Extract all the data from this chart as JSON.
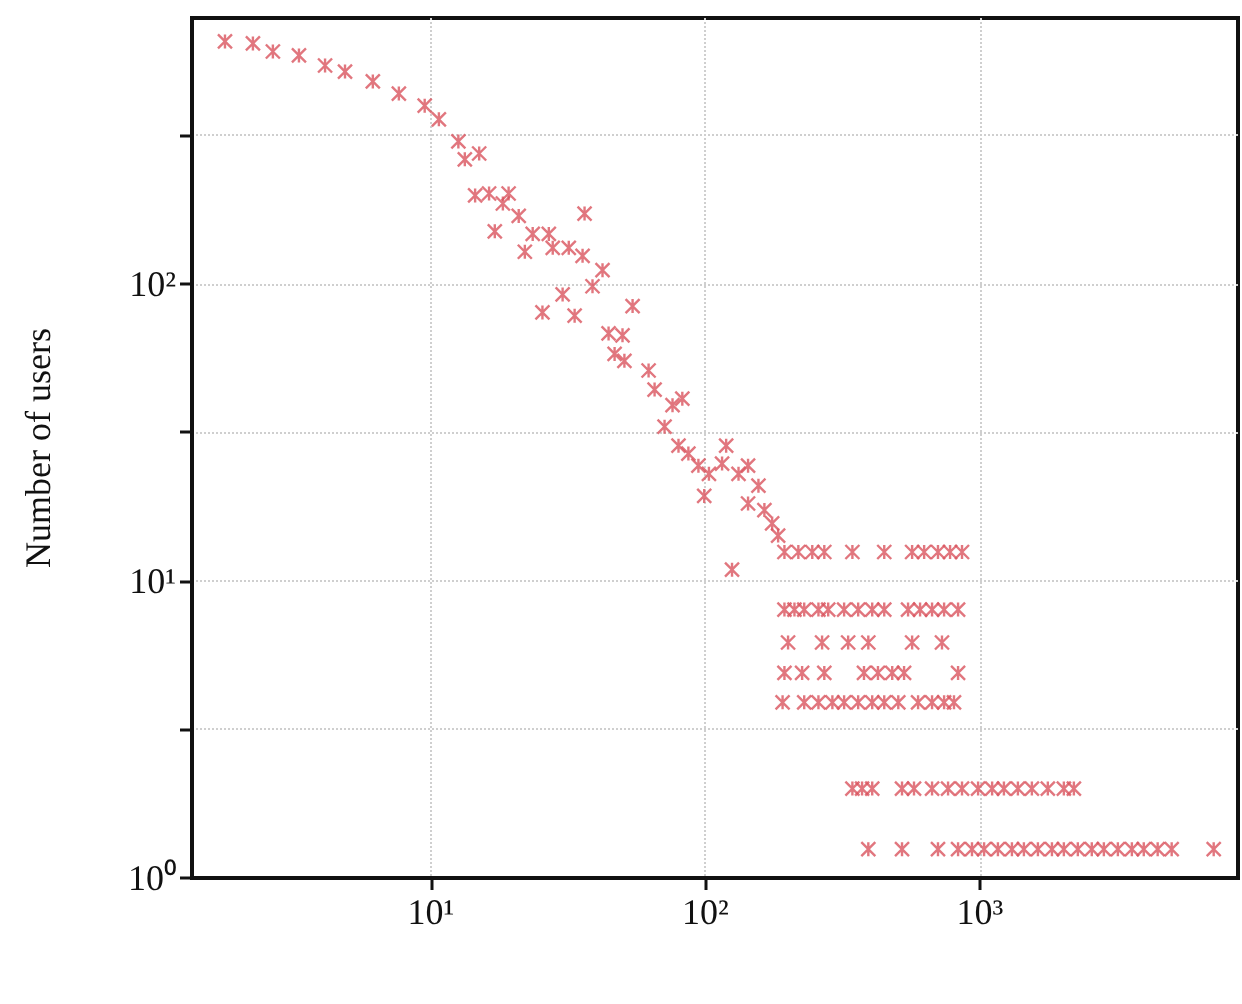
{
  "chart_data": {
    "type": "scatter",
    "ylabel": "Number of users",
    "log": "xy",
    "grid": true,
    "marker": "cross",
    "xlim": [
      1.35,
      8700
    ],
    "ylim": [
      1,
      783
    ],
    "xticks": [
      {
        "value": 10,
        "label": "10¹"
      },
      {
        "value": 100,
        "label": "10²"
      },
      {
        "value": 1000,
        "label": "10³"
      }
    ],
    "yticks": [
      {
        "value": 1,
        "label": "10⁰"
      },
      {
        "value": 3.16,
        "label": null
      },
      {
        "value": 10,
        "label": "10¹"
      },
      {
        "value": 31.6,
        "label": null
      },
      {
        "value": 100,
        "label": "10²"
      },
      {
        "value": 316,
        "label": null
      }
    ],
    "series": [
      {
        "color": "#d9545e",
        "x": [
          1.78,
          2.25,
          2.66,
          3.31,
          4.12,
          4.87,
          6.15,
          7.65,
          9.5,
          10.7,
          12.6,
          13.3,
          15.0,
          14.5,
          16.3,
          19.2,
          18.3,
          20.9,
          17.1,
          23.5,
          26.9,
          36.3,
          22.0,
          27.8,
          31.8,
          35.7,
          42.2,
          38.8,
          30.2,
          25.5,
          33.4,
          44.4,
          49.9,
          46.7,
          54.3,
          50.7,
          62.1,
          65.3,
          75.9,
          82.4,
          71.0,
          79.8,
          86.7,
          94.3,
          103,
          99,
          115,
          119,
          132,
          143,
          156,
          143,
          164,
          175,
          184,
          125,
          194,
          218,
          245,
          271,
          343,
          448,
          566,
          626,
          703,
          778,
          860,
          194,
          211,
          229,
          258,
          280,
          320,
          360,
          405,
          448,
          547,
          605,
          669,
          740,
          832,
          200,
          266,
          331,
          392,
          566,
          727,
          194,
          225,
          271,
          378,
          425,
          479,
          529,
          832,
          191,
          229,
          258,
          290,
          320,
          360,
          405,
          448,
          504,
          595,
          669,
          740,
          804,
          343,
          372,
          405,
          520,
          575,
          669,
          765,
          860,
          984,
          1107,
          1222,
          1374,
          1545,
          1766,
          2020,
          2197,
          392,
          520,
          703,
          832,
          935,
          1035,
          1162,
          1307,
          1445,
          1625,
          1828,
          2020,
          2271,
          2553,
          2825,
          3177,
          3573,
          3948,
          4436,
          4989,
          7096
        ],
        "values": [
          653,
          643,
          604,
          586,
          542,
          517,
          479,
          436,
          397,
          357,
          301,
          262,
          274,
          198,
          201,
          201,
          186,
          169,
          150,
          147,
          147,
          172,
          128,
          132,
          132,
          124,
          111,
          98,
          92,
          80,
          78,
          68,
          67,
          58,
          84,
          55,
          51,
          44,
          39,
          41,
          33,
          28.5,
          26.8,
          24.4,
          22.9,
          19.3,
          24.8,
          28.5,
          22.9,
          24.4,
          20.9,
          18.2,
          17.3,
          15.6,
          14.2,
          10.9,
          12.5,
          12.5,
          12.5,
          12.5,
          12.5,
          12.5,
          12.5,
          12.5,
          12.5,
          12.5,
          12.5,
          8,
          8,
          8,
          8,
          8,
          8,
          8,
          8,
          8,
          8,
          8,
          8,
          8,
          8,
          6.2,
          6.2,
          6.2,
          6.2,
          6.2,
          6.2,
          4.9,
          4.9,
          4.9,
          4.9,
          4.9,
          4.9,
          4.9,
          4.9,
          3.9,
          3.9,
          3.9,
          3.9,
          3.9,
          3.9,
          3.9,
          3.9,
          3.9,
          3.9,
          3.9,
          3.9,
          3.9,
          2,
          2,
          2,
          2,
          2,
          2,
          2,
          2,
          2,
          2,
          2,
          2,
          2,
          2,
          2,
          2,
          1.25,
          1.25,
          1.25,
          1.25,
          1.25,
          1.25,
          1.25,
          1.25,
          1.25,
          1.25,
          1.25,
          1.25,
          1.25,
          1.25,
          1.25,
          1.25,
          1.25,
          1.25,
          1.25,
          1.25,
          1.25
        ]
      }
    ]
  }
}
